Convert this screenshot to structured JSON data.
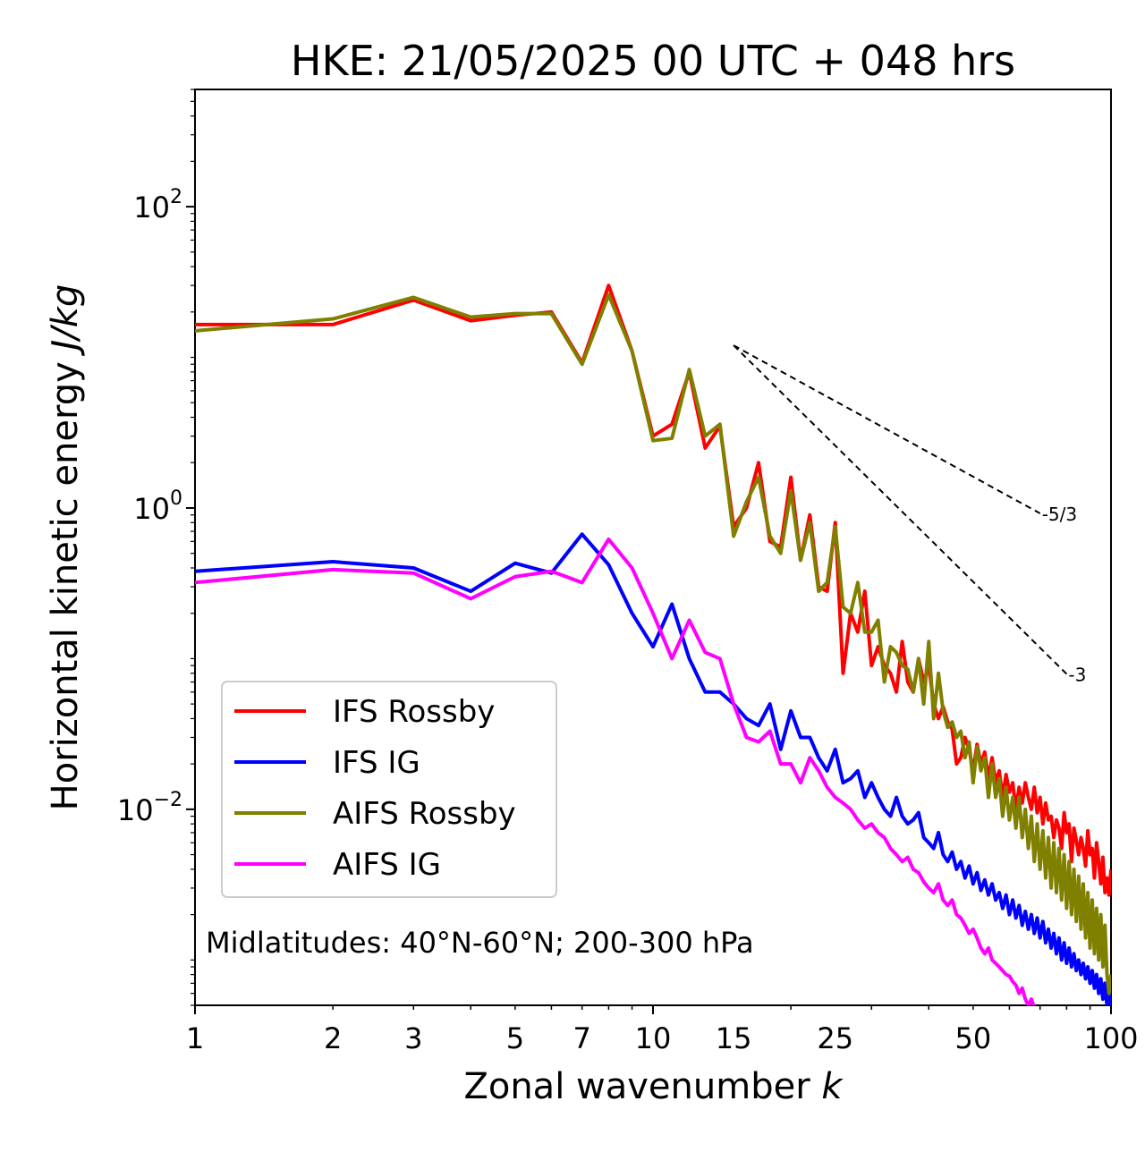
{
  "chart_data": {
    "type": "line",
    "title": "HKE: 21/05/2025 00 UTC + 048 hrs",
    "xlabel_main": "Zonal wavenumber ",
    "xlabel_var": "k",
    "ylabel_main": "Horizontal kinetic energy ",
    "ylabel_unit": "J/kg",
    "x_scale": "log",
    "y_scale": "log",
    "xlim": [
      1,
      100
    ],
    "ylim": [
      0.0005,
      600
    ],
    "x_ticks": [
      1,
      2,
      3,
      5,
      7,
      10,
      15,
      25,
      50,
      100
    ],
    "x_tick_labels": [
      "1",
      "2",
      "3",
      "5",
      "7",
      "10",
      "15",
      "25",
      "50",
      "100"
    ],
    "y_ticks": [
      {
        "value": 100,
        "base": "10",
        "exp": "2"
      },
      {
        "value": 1,
        "base": "10",
        "exp": "0"
      },
      {
        "value": 0.01,
        "base": "10",
        "exp": "−2"
      }
    ],
    "grid": false,
    "legend_position": "lower-left",
    "annotation": "Midlatitudes: 40°N-60°N; 200-300 hPa",
    "reference_slopes": [
      {
        "label": "-5/3",
        "slope": -1.6667,
        "x_start": 15,
        "x_end": 70,
        "y_start": 12.0
      },
      {
        "label": "-3",
        "slope": -3,
        "x_start": 15,
        "x_end": 80,
        "y_start": 12.0
      }
    ],
    "series": [
      {
        "name": "IFS Rossby",
        "color": "#ff0000",
        "x": [
          1,
          2,
          3,
          4,
          5,
          6,
          7,
          8,
          9,
          10,
          11,
          12,
          13,
          14,
          15,
          16,
          17,
          18,
          19,
          20,
          21,
          22,
          23,
          24,
          25,
          26,
          27,
          28,
          29,
          30,
          31,
          32,
          33,
          34,
          35,
          36,
          37,
          38,
          39,
          40,
          41,
          42,
          43,
          44,
          45,
          46,
          47,
          48,
          49,
          50,
          51,
          52,
          53,
          54,
          55,
          56,
          57,
          58,
          59,
          60,
          61,
          62,
          63,
          64,
          65,
          66,
          67,
          68,
          69,
          70,
          71,
          72,
          73,
          74,
          75,
          76,
          77,
          78,
          79,
          80,
          81,
          82,
          83,
          84,
          85,
          86,
          87,
          88,
          89,
          90,
          91,
          92,
          93,
          94,
          95,
          96,
          97,
          98,
          99,
          100
        ],
        "values": [
          16.5,
          16.5,
          24.0,
          17.5,
          19.0,
          20.0,
          9.2,
          30.0,
          11.0,
          3.0,
          3.6,
          8.0,
          2.5,
          3.5,
          0.75,
          1.0,
          2.0,
          0.6,
          0.55,
          1.6,
          0.45,
          0.9,
          0.3,
          0.28,
          0.8,
          0.08,
          0.2,
          0.15,
          0.28,
          0.09,
          0.12,
          0.09,
          0.08,
          0.06,
          0.13,
          0.07,
          0.06,
          0.1,
          0.07,
          0.09,
          0.05,
          0.04,
          0.048,
          0.038,
          0.034,
          0.02,
          0.022,
          0.03,
          0.025,
          0.018,
          0.027,
          0.02,
          0.024,
          0.016,
          0.022,
          0.015,
          0.018,
          0.012,
          0.017,
          0.013,
          0.015,
          0.01,
          0.014,
          0.011,
          0.015,
          0.012,
          0.01,
          0.014,
          0.0095,
          0.012,
          0.008,
          0.011,
          0.0085,
          0.009,
          0.0065,
          0.0085,
          0.0075,
          0.0055,
          0.0095,
          0.007,
          0.008,
          0.0045,
          0.0075,
          0.0062,
          0.005,
          0.0065,
          0.0055,
          0.0042,
          0.0072,
          0.005,
          0.0055,
          0.0035,
          0.006,
          0.0045,
          0.0032,
          0.0048,
          0.0028,
          0.0035,
          0.0027,
          0.004
        ]
      },
      {
        "name": "IFS IG",
        "color": "#0000ff",
        "x": [
          1,
          2,
          3,
          4,
          5,
          6,
          7,
          8,
          9,
          10,
          11,
          12,
          13,
          14,
          15,
          16,
          17,
          18,
          19,
          20,
          21,
          22,
          23,
          24,
          25,
          26,
          27,
          28,
          29,
          30,
          31,
          32,
          33,
          34,
          35,
          36,
          37,
          38,
          39,
          40,
          41,
          42,
          43,
          44,
          45,
          46,
          47,
          48,
          49,
          50,
          51,
          52,
          53,
          54,
          55,
          56,
          57,
          58,
          59,
          60,
          61,
          62,
          63,
          64,
          65,
          66,
          67,
          68,
          69,
          70,
          71,
          72,
          73,
          74,
          75,
          76,
          77,
          78,
          79,
          80,
          81,
          82,
          83,
          84,
          85,
          86,
          87,
          88,
          89,
          90,
          91,
          92,
          93,
          94,
          95,
          96,
          97,
          98,
          99,
          100
        ],
        "values": [
          0.38,
          0.44,
          0.4,
          0.28,
          0.43,
          0.37,
          0.67,
          0.42,
          0.2,
          0.12,
          0.23,
          0.1,
          0.06,
          0.06,
          0.05,
          0.04,
          0.036,
          0.05,
          0.025,
          0.045,
          0.03,
          0.03,
          0.022,
          0.018,
          0.025,
          0.015,
          0.016,
          0.018,
          0.012,
          0.015,
          0.012,
          0.01,
          0.009,
          0.012,
          0.009,
          0.008,
          0.0085,
          0.0095,
          0.0065,
          0.006,
          0.0055,
          0.007,
          0.005,
          0.0045,
          0.0052,
          0.004,
          0.0045,
          0.0035,
          0.0042,
          0.0032,
          0.0038,
          0.0029,
          0.0034,
          0.0027,
          0.0032,
          0.0025,
          0.0028,
          0.0022,
          0.0027,
          0.002,
          0.0025,
          0.0019,
          0.0023,
          0.0017,
          0.0021,
          0.0016,
          0.002,
          0.0015,
          0.0019,
          0.0014,
          0.0018,
          0.0013,
          0.0016,
          0.0012,
          0.0015,
          0.0011,
          0.0014,
          0.001,
          0.0013,
          0.00095,
          0.0012,
          0.0009,
          0.0011,
          0.00085,
          0.001,
          0.0008,
          0.00095,
          0.00075,
          0.0009,
          0.0007,
          0.00085,
          0.00065,
          0.0008,
          0.0006,
          0.00075,
          0.00055,
          0.0007,
          0.0005,
          0.00065,
          0.0005
        ]
      },
      {
        "name": "AIFS Rossby",
        "color": "#808000",
        "x": [
          1,
          2,
          3,
          4,
          5,
          6,
          7,
          8,
          9,
          10,
          11,
          12,
          13,
          14,
          15,
          16,
          17,
          18,
          19,
          20,
          21,
          22,
          23,
          24,
          25,
          26,
          27,
          28,
          29,
          30,
          31,
          32,
          33,
          34,
          35,
          36,
          37,
          38,
          39,
          40,
          41,
          42,
          43,
          44,
          45,
          46,
          47,
          48,
          49,
          50,
          51,
          52,
          53,
          54,
          55,
          56,
          57,
          58,
          59,
          60,
          61,
          62,
          63,
          64,
          65,
          66,
          67,
          68,
          69,
          70,
          71,
          72,
          73,
          74,
          75,
          76,
          77,
          78,
          79,
          80,
          81,
          82,
          83,
          84,
          85,
          86,
          87,
          88,
          89,
          90,
          91,
          92,
          93,
          94,
          95,
          96,
          97,
          98,
          99,
          100
        ],
        "values": [
          15.0,
          18.0,
          25.0,
          18.5,
          19.5,
          19.5,
          9.0,
          26.0,
          11.0,
          2.8,
          2.9,
          8.3,
          3.0,
          3.6,
          0.65,
          1.1,
          1.6,
          0.65,
          0.5,
          1.3,
          0.45,
          0.8,
          0.28,
          0.32,
          0.75,
          0.22,
          0.2,
          0.32,
          0.15,
          0.15,
          0.18,
          0.07,
          0.12,
          0.11,
          0.09,
          0.085,
          0.06,
          0.1,
          0.05,
          0.13,
          0.04,
          0.08,
          0.045,
          0.035,
          0.038,
          0.03,
          0.033,
          0.022,
          0.028,
          0.015,
          0.026,
          0.018,
          0.022,
          0.012,
          0.02,
          0.012,
          0.016,
          0.009,
          0.014,
          0.0085,
          0.012,
          0.0075,
          0.012,
          0.0065,
          0.01,
          0.0055,
          0.009,
          0.0045,
          0.008,
          0.004,
          0.0072,
          0.0035,
          0.0065,
          0.003,
          0.006,
          0.0028,
          0.0055,
          0.0025,
          0.005,
          0.0022,
          0.0045,
          0.002,
          0.004,
          0.0018,
          0.0036,
          0.0016,
          0.0032,
          0.0014,
          0.0028,
          0.0012,
          0.0025,
          0.0011,
          0.0022,
          0.001,
          0.002,
          0.0009,
          0.0017,
          0.0008,
          0.0006,
          0.0008
        ]
      },
      {
        "name": "AIFS IG",
        "color": "#ff00ff",
        "x": [
          1,
          2,
          3,
          4,
          5,
          6,
          7,
          8,
          9,
          10,
          11,
          12,
          13,
          14,
          15,
          16,
          17,
          18,
          19,
          20,
          21,
          22,
          23,
          24,
          25,
          26,
          27,
          28,
          29,
          30,
          31,
          32,
          33,
          34,
          35,
          36,
          37,
          38,
          39,
          40,
          41,
          42,
          43,
          44,
          45,
          46,
          47,
          48,
          49,
          50,
          51,
          52,
          53,
          54,
          55,
          56,
          57,
          58,
          59,
          60,
          61,
          62,
          63,
          64,
          65,
          66,
          67,
          68,
          69,
          70
        ],
        "values": [
          0.32,
          0.39,
          0.37,
          0.25,
          0.35,
          0.38,
          0.32,
          0.62,
          0.4,
          0.2,
          0.1,
          0.18,
          0.11,
          0.1,
          0.05,
          0.03,
          0.028,
          0.033,
          0.02,
          0.02,
          0.015,
          0.022,
          0.018,
          0.014,
          0.012,
          0.011,
          0.01,
          0.0085,
          0.0075,
          0.008,
          0.007,
          0.0065,
          0.0055,
          0.005,
          0.0045,
          0.0048,
          0.004,
          0.0038,
          0.0033,
          0.003,
          0.0028,
          0.0032,
          0.0025,
          0.0023,
          0.0025,
          0.002,
          0.0019,
          0.0017,
          0.0015,
          0.0016,
          0.0014,
          0.0012,
          0.0011,
          0.0012,
          0.001,
          0.00095,
          0.0009,
          0.00085,
          0.0008,
          0.00078,
          0.00072,
          0.00068,
          0.0006,
          0.00065,
          0.00055,
          0.0005,
          0.00055,
          0.00048,
          0.00042,
          0.0004
        ]
      }
    ]
  }
}
